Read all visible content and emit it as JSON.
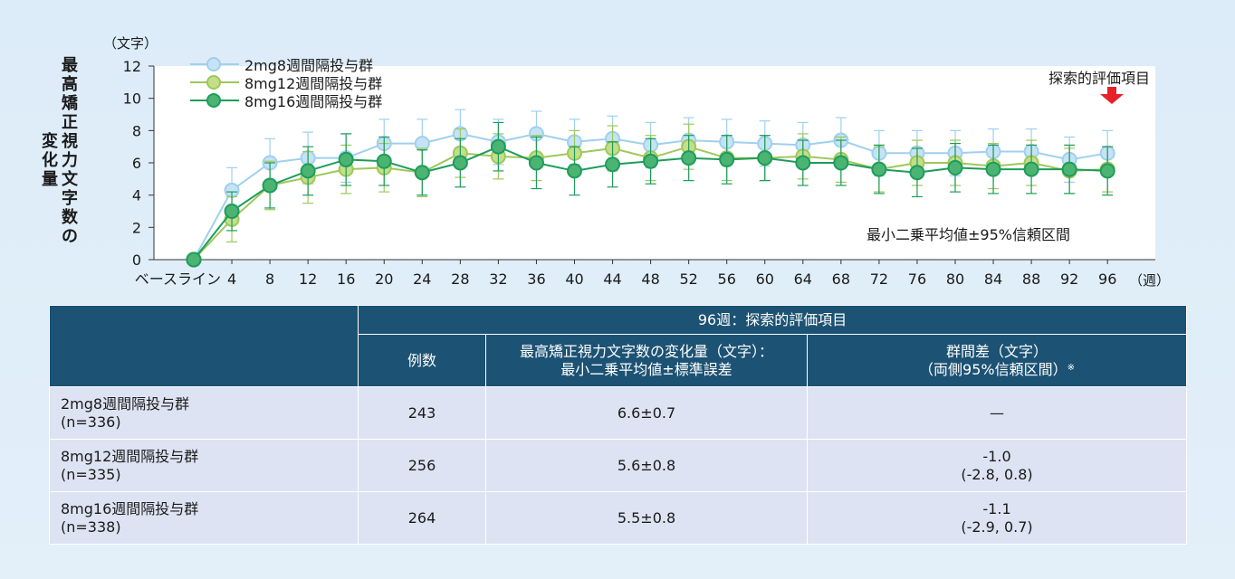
{
  "chart_data": {
    "type": "line",
    "ylabel_line1": "最高矯正視力文字数の",
    "ylabel_line2": "変化量",
    "y_unit": "（文字）",
    "x_unit": "（週）",
    "ylim": [
      0,
      12
    ],
    "yticks": [
      "0",
      "2",
      "4",
      "6",
      "8",
      "10",
      "12"
    ],
    "categories": [
      "ベースライン",
      "4",
      "8",
      "12",
      "16",
      "20",
      "24",
      "28",
      "32",
      "36",
      "40",
      "44",
      "48",
      "52",
      "56",
      "60",
      "64",
      "68",
      "72",
      "76",
      "80",
      "84",
      "88",
      "92",
      "96"
    ],
    "annotation": "最小二乗平均値±95%信頼区間",
    "endpoint_marker": "探索的評価項目",
    "legend_position": "top-left",
    "series": [
      {
        "name": "2mg8週間隔投与群",
        "color": "#9fd0ee",
        "dot_color": "#c6e3f6",
        "values": [
          0,
          4.3,
          6.0,
          6.3,
          6.3,
          7.2,
          7.2,
          7.8,
          7.3,
          7.8,
          7.3,
          7.5,
          7.1,
          7.4,
          7.3,
          7.2,
          7.1,
          7.4,
          6.6,
          6.6,
          6.6,
          6.7,
          6.7,
          6.2,
          6.6
        ],
        "errors": [
          0,
          1.4,
          1.5,
          1.6,
          1.5,
          1.5,
          1.5,
          1.5,
          1.4,
          1.4,
          1.4,
          1.4,
          1.4,
          1.4,
          1.4,
          1.4,
          1.4,
          1.4,
          1.4,
          1.4,
          1.4,
          1.4,
          1.4,
          1.4,
          1.4
        ]
      },
      {
        "name": "8mg12週間隔投与群",
        "color": "#9ec85a",
        "dot_color": "#c4de8a",
        "values": [
          0,
          2.5,
          4.6,
          5.1,
          5.6,
          5.7,
          5.4,
          6.6,
          6.4,
          6.3,
          6.6,
          6.9,
          6.3,
          7.0,
          6.3,
          6.3,
          6.4,
          6.2,
          5.6,
          6.0,
          6.0,
          5.8,
          6.0,
          5.5,
          5.6
        ],
        "errors": [
          0,
          1.4,
          1.5,
          1.6,
          1.5,
          1.5,
          1.5,
          1.5,
          1.4,
          1.4,
          1.4,
          1.4,
          1.4,
          1.4,
          1.4,
          1.4,
          1.4,
          1.4,
          1.4,
          1.4,
          1.4,
          1.4,
          1.4,
          1.4,
          1.4
        ]
      },
      {
        "name": "8mg16週間隔投与群",
        "color": "#1e9c5b",
        "dot_color": "#4cb472",
        "values": [
          0,
          3.0,
          4.6,
          5.5,
          6.2,
          6.1,
          5.4,
          6.0,
          7.0,
          6.0,
          5.5,
          5.9,
          6.1,
          6.3,
          6.2,
          6.3,
          6.0,
          6.0,
          5.6,
          5.4,
          5.7,
          5.6,
          5.6,
          5.6,
          5.5
        ],
        "errors": [
          0,
          1.2,
          1.4,
          1.5,
          1.6,
          1.5,
          1.4,
          1.5,
          1.5,
          1.6,
          1.5,
          1.4,
          1.4,
          1.4,
          1.5,
          1.4,
          1.4,
          1.4,
          1.5,
          1.5,
          1.5,
          1.5,
          1.5,
          1.5,
          1.5
        ]
      }
    ]
  },
  "table": {
    "span_header": "96週：探索的評価項目",
    "col_n": "例数",
    "col_change_line1": "最高矯正視力文字数の変化量（文字）：",
    "col_change_line2": "最小二乗平均値±標準誤差",
    "col_diff_line1": "群間差（文字）",
    "col_diff_line2": "（両側95%信頼区間）",
    "col_diff_note": "※",
    "rows": [
      {
        "group": "2mg8週間隔投与群",
        "n_total": "(n=336)",
        "n": "243",
        "change": "6.6±0.7",
        "diff": "—",
        "ci": ""
      },
      {
        "group": "8mg12週間隔投与群",
        "n_total": "(n=335)",
        "n": "256",
        "change": "5.6±0.8",
        "diff": "-1.0",
        "ci": "(-2.8, 0.8)"
      },
      {
        "group": "8mg16週間隔投与群",
        "n_total": "(n=338)",
        "n": "264",
        "change": "5.5±0.8",
        "diff": "-1.1",
        "ci": "(-2.9, 0.7)"
      }
    ]
  }
}
